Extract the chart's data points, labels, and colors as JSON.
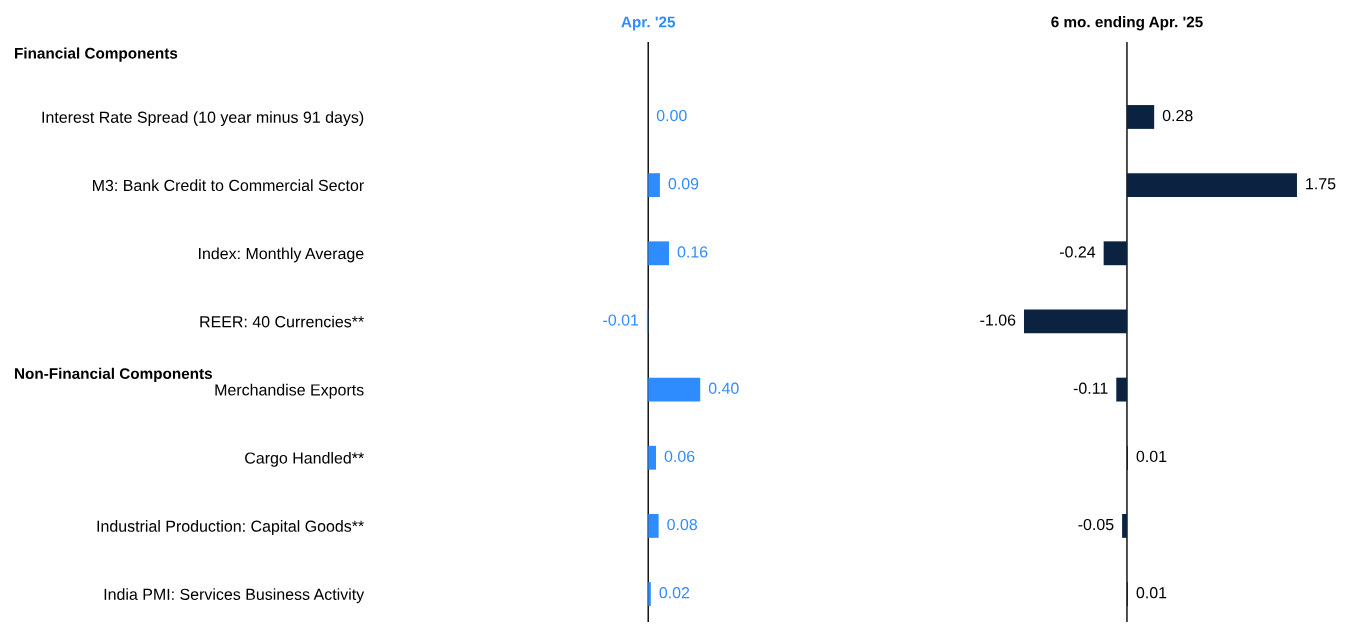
{
  "chart_data": [
    {
      "type": "bar",
      "orientation": "horizontal",
      "title": "Apr. '25",
      "categories": [
        "Interest Rate Spread (10 year minus 91 days)",
        "M3: Bank Credit to Commercial Sector",
        "Index: Monthly Average",
        "REER: 40 Currencies**",
        "Merchandise Exports",
        "Cargo Handled**",
        "Industrial Production: Capital Goods**",
        "India PMI: Services Business Activity"
      ],
      "series": [
        {
          "color": "#2f8cff",
          "values": [
            0.0,
            0.09,
            0.16,
            -0.01,
            0.4,
            0.06,
            0.08,
            0.02
          ],
          "value_labels": [
            "0.00",
            "0.09",
            "0.16",
            "-0.01",
            "0.40",
            "0.06",
            "0.08",
            "0.02"
          ]
        }
      ],
      "ref_lines": [
        {
          "axis": "x",
          "value": 0,
          "color": "#000000"
        }
      ],
      "annotations": [
        "Financial Components",
        "Non-Financial Components"
      ],
      "grid": false,
      "legend": false
    },
    {
      "type": "bar",
      "orientation": "horizontal",
      "title": "6 mo. ending Apr. '25",
      "categories": [
        null,
        null,
        null,
        null,
        null,
        null,
        null,
        null
      ],
      "series": [
        {
          "color": "#0b2341",
          "values": [
            0.28,
            1.75,
            -0.24,
            -1.06,
            -0.11,
            0.01,
            -0.05,
            0.01
          ],
          "value_labels": [
            "0.28",
            "1.75",
            "-0.24",
            "-1.06",
            "-0.11",
            "0.01",
            "-0.05",
            "0.01"
          ]
        }
      ],
      "ref_lines": [
        {
          "axis": "x",
          "value": 0,
          "color": "#000000"
        }
      ],
      "grid": false,
      "legend": false
    }
  ]
}
